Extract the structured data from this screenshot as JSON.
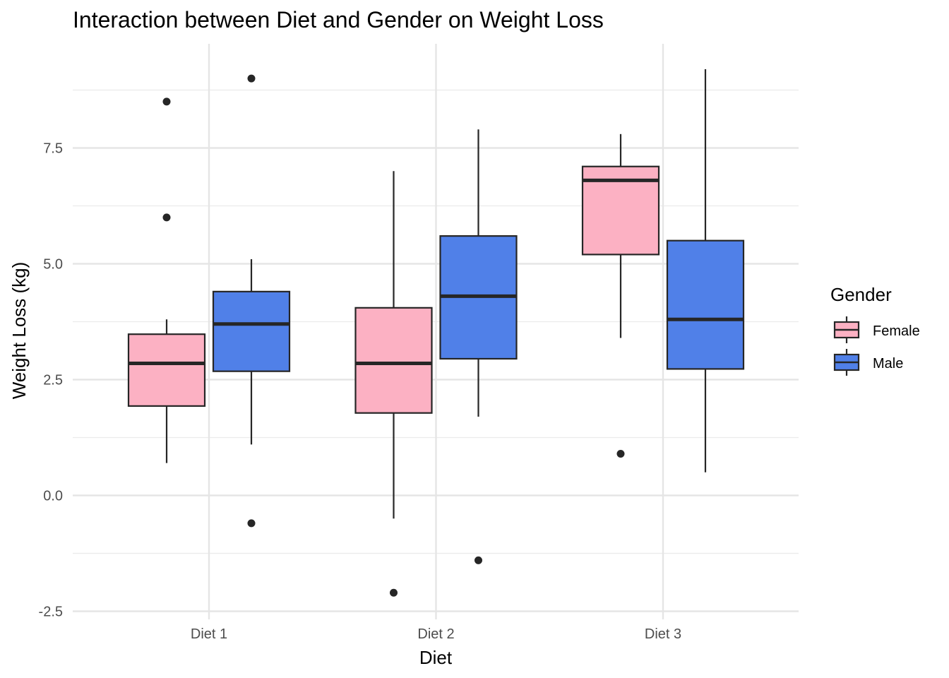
{
  "chart_data": {
    "type": "boxplot",
    "title": "Interaction between Diet and Gender on Weight Loss",
    "xlabel": "Diet",
    "ylabel": "Weight Loss (kg)",
    "categories": [
      "Diet 1",
      "Diet 2",
      "Diet 3"
    ],
    "ylim": [
      -2.5,
      9.4
    ],
    "yticks": [
      -2.5,
      0.0,
      2.5,
      5.0,
      7.5
    ],
    "ytick_labels": [
      "-2.5",
      "0.0",
      "2.5",
      "5.0",
      "7.5"
    ],
    "grid": true,
    "legend": {
      "title": "Gender",
      "placement": "right"
    },
    "series": [
      {
        "name": "Female",
        "color": "#fcb1c3",
        "boxes": [
          {
            "category": "Diet 1",
            "whisker_low": 0.7,
            "q1": 1.93,
            "median": 2.85,
            "q3": 3.48,
            "whisker_high": 3.8,
            "outliers": [
              6.0,
              8.5
            ]
          },
          {
            "category": "Diet 2",
            "whisker_low": -0.5,
            "q1": 1.78,
            "median": 2.85,
            "q3": 4.05,
            "whisker_high": 7.0,
            "outliers": [
              -2.1
            ]
          },
          {
            "category": "Diet 3",
            "whisker_low": 3.4,
            "q1": 5.2,
            "median": 6.8,
            "q3": 7.1,
            "whisker_high": 7.8,
            "outliers": [
              0.9
            ]
          }
        ]
      },
      {
        "name": "Male",
        "color": "#5080e8",
        "boxes": [
          {
            "category": "Diet 1",
            "whisker_low": 1.1,
            "q1": 2.68,
            "median": 3.7,
            "q3": 4.4,
            "whisker_high": 5.1,
            "outliers": [
              -0.6,
              9.0
            ]
          },
          {
            "category": "Diet 2",
            "whisker_low": 1.7,
            "q1": 2.95,
            "median": 4.3,
            "q3": 5.6,
            "whisker_high": 7.9,
            "outliers": [
              -1.4
            ]
          },
          {
            "category": "Diet 3",
            "whisker_low": 0.5,
            "q1": 2.73,
            "median": 3.8,
            "q3": 5.5,
            "whisker_high": 9.2,
            "outliers": []
          }
        ]
      }
    ]
  }
}
